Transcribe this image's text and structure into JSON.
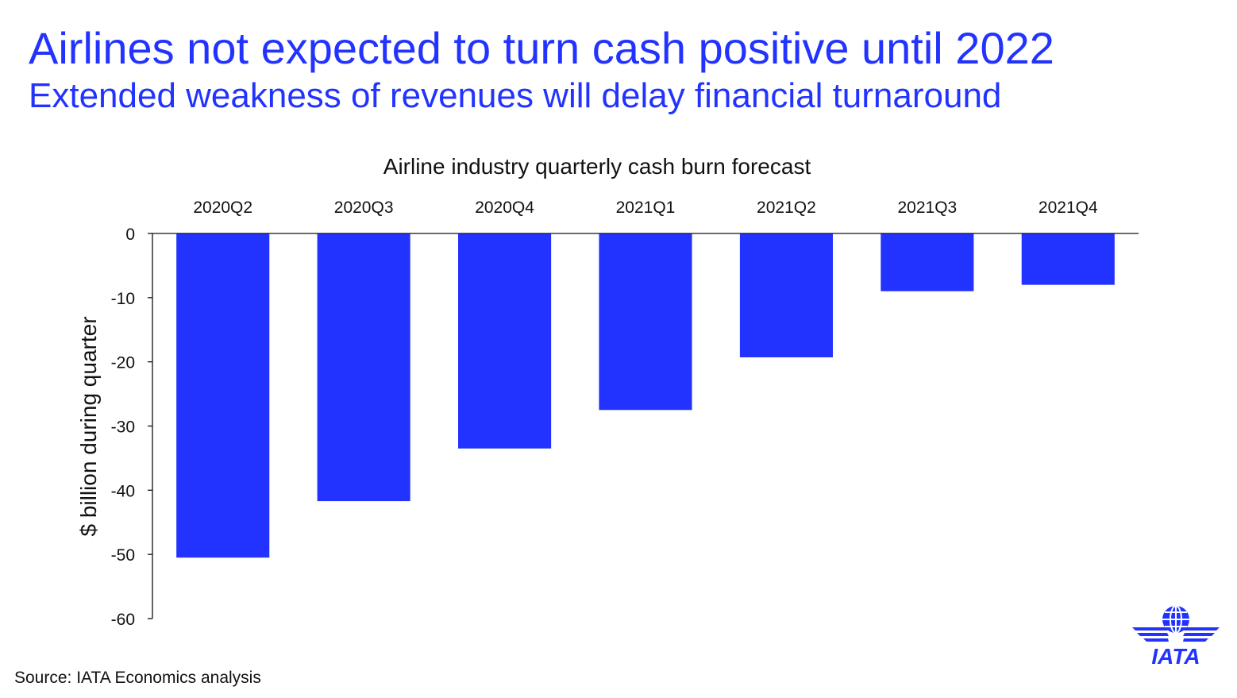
{
  "slide": {
    "title": "Airlines not expected to turn cash positive until 2022",
    "subtitle": "Extended weakness of revenues will delay financial turnaround",
    "source": "Source: IATA Economics analysis"
  },
  "logo": {
    "text": "IATA"
  },
  "colors": {
    "accent": "#2233ff",
    "bar": "#2233ff",
    "text": "#111111"
  },
  "chart_data": {
    "type": "bar",
    "title": "Airline industry quarterly cash burn forecast",
    "ylabel": "$ billion during quarter",
    "xlabel": "",
    "categories": [
      "2020Q2",
      "2020Q3",
      "2020Q4",
      "2021Q1",
      "2021Q2",
      "2021Q3",
      "2021Q4"
    ],
    "values": [
      -50.5,
      -41.7,
      -33.5,
      -27.5,
      -19.3,
      -9.0,
      -8.0
    ],
    "ylim": [
      -60,
      0
    ],
    "yticks": [
      0,
      -10,
      -20,
      -30,
      -40,
      -50,
      -60
    ],
    "xaxis_position": "top",
    "grid": false,
    "legend": "none"
  }
}
